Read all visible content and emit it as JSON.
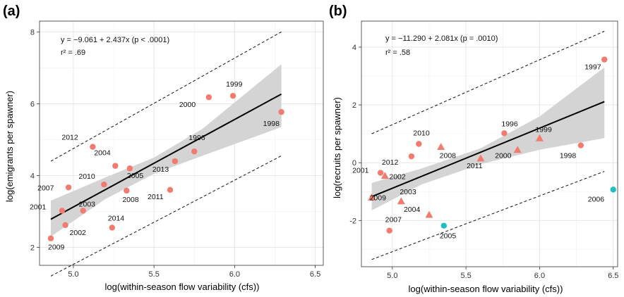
{
  "chart_data": [
    {
      "type": "scatter",
      "panel_label": "(a)",
      "xlabel": "log(within-season flow variability (cfs))",
      "ylabel": "log(emigrants per spawner)",
      "xlim": [
        4.79,
        6.55
      ],
      "ylim": [
        1.5,
        8.3
      ],
      "xticks": [
        5.0,
        5.5,
        6.0,
        6.5
      ],
      "xtick_labels": [
        "5.0",
        "5.5",
        "6.0",
        "6.5"
      ],
      "yticks": [
        2,
        4,
        6,
        8
      ],
      "ytick_labels": [
        "2",
        "4",
        "6",
        "8"
      ],
      "equation": "y = −9.061 + 2.437x (p < .0001)",
      "r2": "r² = .69",
      "regression": {
        "intercept": -9.061,
        "slope": 2.437,
        "x_range": [
          4.86,
          6.29
        ]
      },
      "prediction_band": {
        "lower": [
          [
            4.86,
            1.2
          ],
          [
            6.29,
            4.55
          ]
        ],
        "upper": [
          [
            4.86,
            4.4
          ],
          [
            6.29,
            8.0
          ]
        ]
      },
      "confidence_band": {
        "x": [
          4.86,
          5.2,
          5.5,
          5.8,
          6.29
        ],
        "lower": [
          2.3,
          3.35,
          4.05,
          4.55,
          5.35
        ],
        "upper": [
          3.3,
          3.95,
          4.5,
          5.3,
          7.1
        ]
      },
      "grid": true,
      "points": [
        {
          "label": "1996",
          "x": 5.75,
          "y": 4.67,
          "shape": "circle",
          "color": "#F07B6E"
        },
        {
          "label": "1998",
          "x": 6.29,
          "y": 5.77,
          "shape": "circle",
          "color": "#F07B6E"
        },
        {
          "label": "1999",
          "x": 5.99,
          "y": 6.22,
          "shape": "circle",
          "color": "#F07B6E"
        },
        {
          "label": "2000",
          "x": 5.84,
          "y": 6.18,
          "shape": "circle",
          "color": "#F07B6E"
        },
        {
          "label": "2001",
          "x": 4.93,
          "y": 3.02,
          "shape": "circle",
          "color": "#F07B6E"
        },
        {
          "label": "2002",
          "x": 4.95,
          "y": 2.62,
          "shape": "circle",
          "color": "#F07B6E"
        },
        {
          "label": "2003",
          "x": 5.06,
          "y": 3.02,
          "shape": "circle",
          "color": "#F07B6E"
        },
        {
          "label": "2004",
          "x": 5.26,
          "y": 4.27,
          "shape": "circle",
          "color": "#F07B6E"
        },
        {
          "label": "2005",
          "x": 5.35,
          "y": 4.2,
          "shape": "circle",
          "color": "#F07B6E"
        },
        {
          "label": "2007",
          "x": 4.97,
          "y": 3.67,
          "shape": "circle",
          "color": "#F07B6E"
        },
        {
          "label": "2008",
          "x": 5.33,
          "y": 3.58,
          "shape": "circle",
          "color": "#F07B6E"
        },
        {
          "label": "2009",
          "x": 4.86,
          "y": 2.25,
          "shape": "circle",
          "color": "#F07B6E"
        },
        {
          "label": "2010",
          "x": 5.19,
          "y": 3.75,
          "shape": "circle",
          "color": "#F07B6E"
        },
        {
          "label": "2011",
          "x": 5.6,
          "y": 3.6,
          "shape": "circle",
          "color": "#F07B6E"
        },
        {
          "label": "2012",
          "x": 5.12,
          "y": 4.8,
          "shape": "circle",
          "color": "#F07B6E"
        },
        {
          "label": "2013",
          "x": 5.63,
          "y": 4.4,
          "shape": "circle",
          "color": "#F07B6E"
        },
        {
          "label": "2014",
          "x": 5.24,
          "y": 2.55,
          "shape": "circle",
          "color": "#F07B6E"
        }
      ]
    },
    {
      "type": "scatter",
      "panel_label": "(b)",
      "xlabel": "log(within-season flow variability (cfs))",
      "ylabel": "log(recruits per spawner)",
      "xlim": [
        4.79,
        6.53
      ],
      "ylim": [
        -3.6,
        4.9
      ],
      "xticks": [
        5.0,
        5.5,
        6.0,
        6.5
      ],
      "xtick_labels": [
        "5.0",
        "5.5",
        "6.0",
        "6.5"
      ],
      "yticks": [
        -2,
        0,
        2,
        4
      ],
      "ytick_labels": [
        "-2",
        "0",
        "2",
        "4"
      ],
      "equation": "y = −11.290 + 2.081x (p = .0010)",
      "r2": "r² = .58",
      "regression": {
        "intercept": -11.29,
        "slope": 2.081,
        "x_range": [
          4.86,
          6.44
        ]
      },
      "prediction_band": {
        "lower": [
          [
            4.86,
            -3.35
          ],
          [
            6.44,
            -0.3
          ]
        ],
        "upper": [
          [
            4.86,
            1.0
          ],
          [
            6.44,
            4.55
          ]
        ]
      },
      "confidence_band": {
        "x": [
          4.86,
          5.2,
          5.6,
          6.0,
          6.44
        ],
        "lower": [
          -1.65,
          -0.75,
          -0.05,
          0.45,
          0.85
        ],
        "upper": [
          -0.7,
          -0.2,
          0.5,
          1.6,
          3.3
        ]
      },
      "grid": true,
      "points": [
        {
          "label": "1996",
          "x": 5.76,
          "y": 1.02,
          "shape": "circle",
          "color": "#F07B6E"
        },
        {
          "label": "1997",
          "x": 6.44,
          "y": 3.57,
          "shape": "circle",
          "color": "#F07B6E"
        },
        {
          "label": "1998",
          "x": 6.28,
          "y": 0.6,
          "shape": "circle",
          "color": "#F07B6E"
        },
        {
          "label": "1999",
          "x": 6.0,
          "y": 0.85,
          "shape": "triangle",
          "color": "#F07B6E"
        },
        {
          "label": "2000",
          "x": 5.85,
          "y": 0.45,
          "shape": "triangle",
          "color": "#F07B6E"
        },
        {
          "label": "2001",
          "x": 4.92,
          "y": -0.35,
          "shape": "circle",
          "color": "#F07B6E"
        },
        {
          "label": "2002",
          "x": 4.95,
          "y": -0.45,
          "shape": "triangle",
          "color": "#F07B6E"
        },
        {
          "label": "2003",
          "x": 5.06,
          "y": -1.33,
          "shape": "triangle",
          "color": "#F07B6E"
        },
        {
          "label": "2004",
          "x": 5.25,
          "y": -1.8,
          "shape": "triangle",
          "color": "#F07B6E"
        },
        {
          "label": "2005",
          "x": 5.35,
          "y": -2.18,
          "shape": "circle",
          "color": "#1FBFC2"
        },
        {
          "label": "2006",
          "x": 6.5,
          "y": -0.93,
          "shape": "circle",
          "color": "#1FBFC2"
        },
        {
          "label": "2007",
          "x": 4.98,
          "y": -2.35,
          "shape": "circle",
          "color": "#F07B6E"
        },
        {
          "label": "2008",
          "x": 5.33,
          "y": 0.55,
          "shape": "triangle",
          "color": "#F07B6E"
        },
        {
          "label": "2009",
          "x": 4.86,
          "y": -1.2,
          "shape": "triangle",
          "color": "#F07B6E"
        },
        {
          "label": "2010",
          "x": 5.18,
          "y": 0.65,
          "shape": "circle",
          "color": "#F07B6E"
        },
        {
          "label": "2011",
          "x": 5.6,
          "y": 0.15,
          "shape": "triangle",
          "color": "#F07B6E"
        },
        {
          "label": "2012",
          "x": 5.13,
          "y": 0.22,
          "shape": "circle",
          "color": "#F07B6E"
        }
      ]
    }
  ]
}
